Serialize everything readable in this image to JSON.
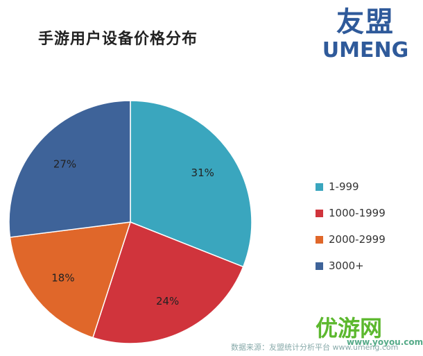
{
  "chart_data": {
    "type": "pie",
    "title": "手游用户设备价格分布",
    "categories": [
      "1-999",
      "1000-1999",
      "2000-2999",
      "3000+"
    ],
    "values": [
      31,
      24,
      18,
      27
    ],
    "labels": [
      "31%",
      "24%",
      "18%",
      "27%"
    ],
    "colors": [
      "#3aa6be",
      "#d0343c",
      "#e0672a",
      "#3e6399"
    ],
    "start": "top",
    "direction": "clockwise",
    "legend_position": "right"
  },
  "logo": {
    "cn": "友盟",
    "en": "UMENG"
  },
  "source": "数据来源：友盟统计分析平台 www.umeng.com",
  "watermark": {
    "name": "优游网",
    "url": "www.yoyou.com"
  }
}
